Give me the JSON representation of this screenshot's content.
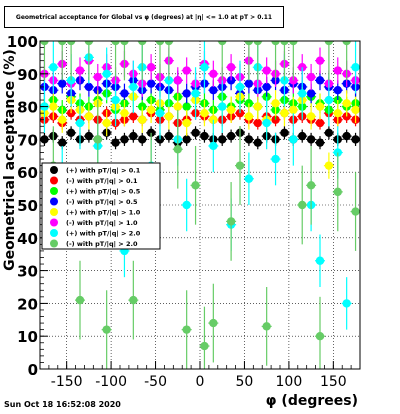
{
  "chart_data": {
    "type": "scatter",
    "title": "Geometrical acceptance for Global vs φ (degrees) at |η| <= 1.0 at pT > 0.11",
    "xlabel": "φ (degrees)",
    "ylabel": "Geometrical acceptance (%)",
    "xlim": [
      -180,
      180
    ],
    "ylim": [
      0,
      100
    ],
    "xticks": [
      -150,
      -100,
      -50,
      0,
      50,
      100,
      150
    ],
    "yticks": [
      0,
      10,
      20,
      30,
      40,
      50,
      60,
      70,
      80,
      90,
      100
    ],
    "grid": true,
    "legend_position": "left",
    "timestamp": "Sun Oct 18 16:52:08 2020",
    "series": [
      {
        "name": "(+) with pT/|q| > 0.1",
        "color": "#000000",
        "error": 2,
        "x": [
          -175,
          -165,
          -155,
          -145,
          -135,
          -125,
          -115,
          -105,
          -95,
          -85,
          -75,
          -65,
          -55,
          -45,
          -35,
          -25,
          -15,
          -5,
          5,
          15,
          25,
          35,
          45,
          55,
          65,
          75,
          85,
          95,
          105,
          115,
          125,
          135,
          145,
          155,
          165,
          175
        ],
        "y": [
          70,
          71,
          69,
          72,
          70,
          71,
          70,
          72,
          69,
          70,
          71,
          70,
          72,
          70,
          71,
          69,
          70,
          72,
          71,
          70,
          70,
          71,
          72,
          70,
          69,
          71,
          70,
          72,
          70,
          71,
          70,
          69,
          72,
          70,
          71,
          70
        ]
      },
      {
        "name": "(-) with pT/|q| > 0.1",
        "color": "#ff0000",
        "error": 2,
        "x": [
          -175,
          -165,
          -155,
          -145,
          -135,
          -125,
          -115,
          -105,
          -95,
          -85,
          -75,
          -65,
          -55,
          -45,
          -35,
          -25,
          -15,
          -5,
          5,
          15,
          25,
          35,
          45,
          55,
          65,
          75,
          85,
          95,
          105,
          115,
          125,
          135,
          145,
          155,
          165,
          175
        ],
        "y": [
          76,
          77,
          75,
          78,
          76,
          77,
          76,
          78,
          75,
          76,
          77,
          76,
          78,
          76,
          77,
          75,
          76,
          78,
          77,
          76,
          76,
          77,
          78,
          76,
          75,
          77,
          76,
          78,
          76,
          77,
          76,
          75,
          78,
          76,
          77,
          76
        ]
      },
      {
        "name": "(+) with pT/|q| > 0.5",
        "color": "#00ff00",
        "error": 3,
        "x": [
          -175,
          -165,
          -155,
          -145,
          -135,
          -125,
          -115,
          -105,
          -95,
          -85,
          -75,
          -65,
          -55,
          -45,
          -35,
          -25,
          -15,
          -5,
          5,
          15,
          25,
          35,
          45,
          55,
          65,
          75,
          85,
          95,
          105,
          115,
          125,
          135,
          145,
          155,
          165,
          175
        ],
        "y": [
          80,
          82,
          79,
          83,
          81,
          80,
          82,
          84,
          79,
          81,
          83,
          80,
          82,
          79,
          81,
          83,
          80,
          82,
          81,
          79,
          83,
          80,
          82,
          81,
          80,
          83,
          79,
          82,
          81,
          80,
          83,
          81,
          79,
          82,
          80,
          81
        ]
      },
      {
        "name": "(-) with pT/|q| > 0.5",
        "color": "#0000ff",
        "error": 3,
        "x": [
          -175,
          -165,
          -155,
          -145,
          -135,
          -125,
          -115,
          -105,
          -95,
          -85,
          -75,
          -65,
          -55,
          -45,
          -35,
          -25,
          -15,
          -5,
          5,
          15,
          25,
          35,
          45,
          55,
          65,
          75,
          85,
          95,
          105,
          115,
          125,
          135,
          145,
          155,
          165,
          175
        ],
        "y": [
          86,
          85,
          87,
          84,
          88,
          86,
          85,
          87,
          86,
          84,
          88,
          85,
          87,
          86,
          85,
          88,
          84,
          86,
          87,
          85,
          86,
          88,
          84,
          87,
          85,
          86,
          88,
          85,
          87,
          86,
          84,
          88,
          86,
          85,
          87,
          86
        ]
      },
      {
        "name": "(+) with pT/|q| > 1.0",
        "color": "#ffff00",
        "error": 4,
        "x": [
          -175,
          -165,
          -155,
          -145,
          -135,
          -125,
          -115,
          -105,
          -95,
          -85,
          -75,
          -65,
          -55,
          -45,
          -35,
          -25,
          -15,
          -5,
          5,
          15,
          25,
          35,
          45,
          55,
          65,
          75,
          85,
          95,
          105,
          115,
          125,
          135,
          145,
          155,
          165,
          175
        ],
        "y": [
          78,
          80,
          76,
          82,
          79,
          77,
          81,
          75,
          80,
          78,
          83,
          76,
          79,
          81,
          77,
          80,
          75,
          82,
          78,
          76,
          80,
          79,
          83,
          77,
          80,
          76,
          81,
          78,
          79,
          82,
          77,
          80,
          62,
          78,
          81,
          79
        ]
      },
      {
        "name": "(-) with pT/|q| > 1.0",
        "color": "#ff00ff",
        "error": 4,
        "x": [
          -175,
          -165,
          -155,
          -145,
          -135,
          -125,
          -115,
          -105,
          -95,
          -85,
          -75,
          -65,
          -55,
          -45,
          -35,
          -25,
          -15,
          -5,
          5,
          15,
          25,
          35,
          45,
          55,
          65,
          75,
          85,
          95,
          105,
          115,
          125,
          135,
          145,
          155,
          165,
          175
        ],
        "y": [
          90,
          88,
          93,
          87,
          91,
          94,
          89,
          92,
          88,
          93,
          90,
          87,
          92,
          89,
          94,
          88,
          91,
          87,
          93,
          90,
          88,
          92,
          89,
          94,
          87,
          91,
          90,
          93,
          88,
          92,
          89,
          94,
          87,
          91,
          90,
          88
        ]
      },
      {
        "name": "(+) with pT/|q| > 2.0",
        "color": "#00ffff",
        "error": 8,
        "x": [
          -175,
          -165,
          -155,
          -145,
          -135,
          -125,
          -115,
          -105,
          -95,
          -85,
          -75,
          -65,
          -55,
          -45,
          -35,
          -25,
          -15,
          -5,
          5,
          15,
          25,
          35,
          45,
          55,
          65,
          75,
          85,
          95,
          105,
          115,
          125,
          135,
          145,
          155,
          165,
          175
        ],
        "y": [
          80,
          92,
          60,
          88,
          75,
          95,
          68,
          90,
          82,
          36,
          86,
          92,
          62,
          78,
          88,
          70,
          50,
          84,
          92,
          68,
          80,
          44,
          86,
          58,
          92,
          75,
          64,
          88,
          70,
          84,
          50,
          33,
          82,
          66,
          20,
          92
        ]
      },
      {
        "name": "(-) with pT/|q| > 2.0",
        "color": "#66cc66",
        "error": 12,
        "x": [
          -175,
          -165,
          -155,
          -145,
          -135,
          -125,
          -115,
          -105,
          -95,
          -85,
          -75,
          -65,
          -55,
          -45,
          -35,
          -25,
          -15,
          -5,
          5,
          15,
          25,
          35,
          45,
          55,
          65,
          75,
          85,
          95,
          105,
          115,
          125,
          135,
          145,
          155,
          165,
          175
        ],
        "y": [
          100,
          62,
          100,
          100,
          21,
          100,
          70,
          12,
          100,
          100,
          21,
          100,
          60,
          100,
          100,
          67,
          12,
          56,
          7,
          14,
          100,
          45,
          62,
          100,
          100,
          13,
          100,
          100,
          100,
          50,
          56,
          10,
          100,
          54,
          100,
          48
        ]
      }
    ]
  }
}
